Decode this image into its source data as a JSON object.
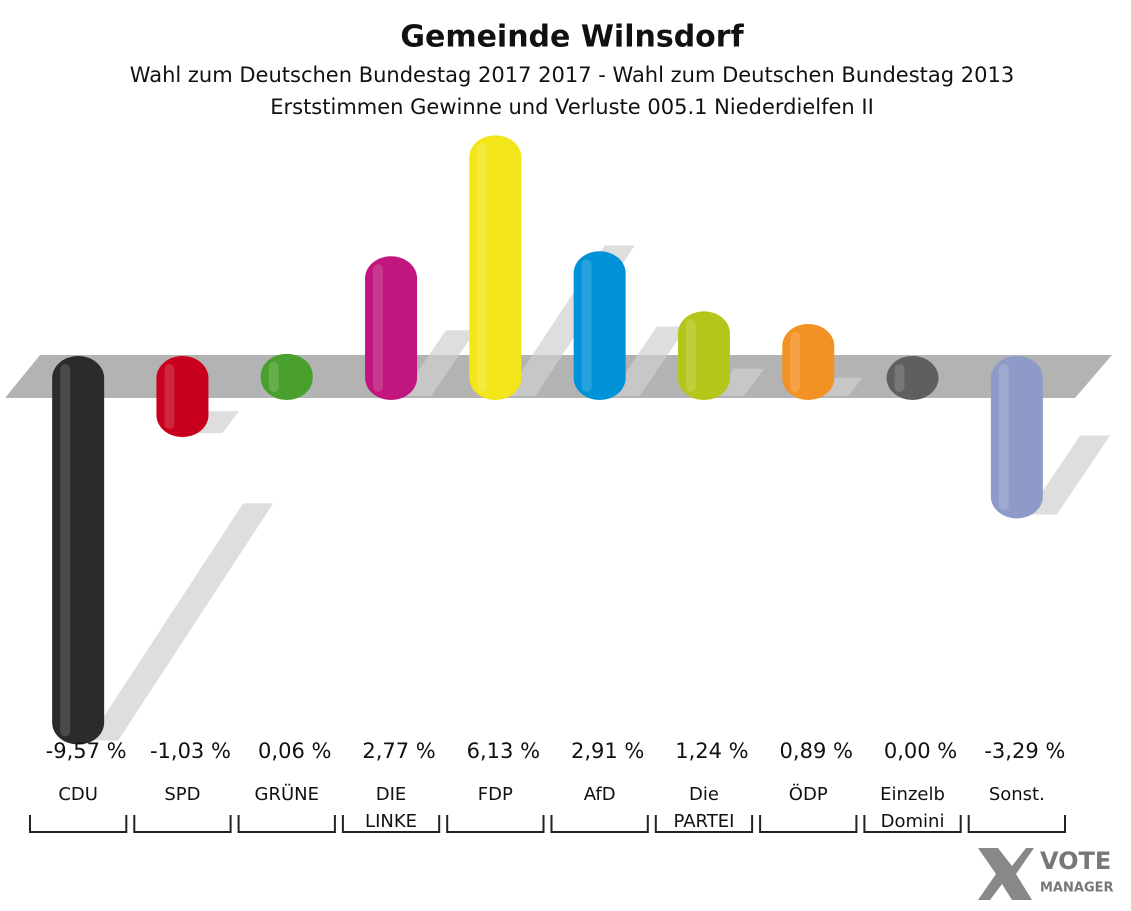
{
  "chart_data": {
    "type": "bar",
    "title": "Gemeinde Wilnsdorf",
    "subtitle": [
      "Wahl zum Deutschen Bundestag 2017 2017 - Wahl zum Deutschen Bundestag 2013",
      "Erststimmen Gewinne und Verluste 005.1 Niederdielfen II"
    ],
    "categories": [
      "CDU",
      "SPD",
      "GRÜNE",
      "DIE LINKE",
      "FDP",
      "AfD",
      "Die PARTEI",
      "ÖDP",
      "Einzelb Domini",
      "Sonst."
    ],
    "values": [
      -9.57,
      -1.03,
      0.06,
      2.77,
      6.13,
      2.91,
      1.24,
      0.89,
      0.0,
      -3.29
    ],
    "value_labels": [
      "-9,57 %",
      "-1,03 %",
      "0,06 %",
      "2,77 %",
      "6,13 %",
      "2,91 %",
      "1,24 %",
      "0,89 %",
      "0,00 %",
      "-3,29 %"
    ],
    "colors": [
      "#2b2b2b",
      "#c8001e",
      "#4aa02c",
      "#c0167d",
      "#f2e51a",
      "#0092d6",
      "#b5c61a",
      "#f39224",
      "#5f5f5f",
      "#8e9bc8"
    ],
    "ylim": [
      -10,
      7
    ],
    "logo": [
      "VOTE",
      "MANAGER"
    ]
  }
}
